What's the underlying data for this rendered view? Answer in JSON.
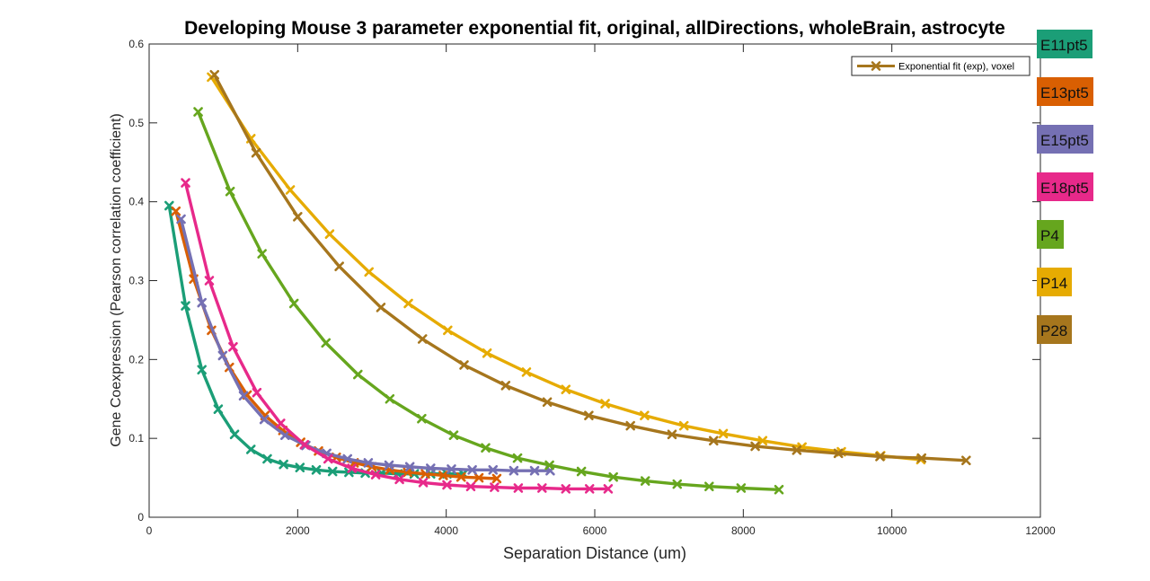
{
  "chart_data": {
    "type": "line",
    "title": "Developing Mouse 3 parameter exponential fit, original, allDirections, wholeBrain, astrocyte",
    "xlabel": "Separation Distance (um)",
    "ylabel": "Gene Coexpression (Pearson correlation coefficient)",
    "xlim": [
      0,
      12000
    ],
    "ylim": [
      0,
      0.6
    ],
    "xticks": [
      "0",
      "2000",
      "4000",
      "6000",
      "8000",
      "10000",
      "12000"
    ],
    "yticks": [
      "0",
      "0.1",
      "0.2",
      "0.3",
      "0.4",
      "0.5",
      "0.6"
    ],
    "grid": false,
    "legend": {
      "entry": "Exponential fit (exp), voxel",
      "position": "top-right",
      "color": "#a6761d"
    },
    "series": [
      {
        "name": "E11pt5",
        "color": "#1b9e77",
        "x": [
          270,
          490,
          710,
          930,
          1150,
          1370,
          1590,
          1810,
          2030,
          2250,
          2470,
          2690,
          2910,
          3130,
          3350,
          3570,
          3790,
          4010,
          4230
        ],
        "y": [
          0.395,
          0.268,
          0.187,
          0.137,
          0.105,
          0.086,
          0.074,
          0.067,
          0.063,
          0.06,
          0.058,
          0.057,
          0.056,
          0.056,
          0.055,
          0.055,
          0.055,
          0.055,
          0.055
        ]
      },
      {
        "name": "E13pt5",
        "color": "#d95f02",
        "x": [
          360,
          600,
          840,
          1080,
          1320,
          1560,
          1800,
          2040,
          2280,
          2520,
          2760,
          3000,
          3240,
          3480,
          3720,
          3960,
          4200,
          4440,
          4680
        ],
        "y": [
          0.388,
          0.302,
          0.237,
          0.19,
          0.155,
          0.129,
          0.11,
          0.095,
          0.084,
          0.076,
          0.069,
          0.064,
          0.06,
          0.057,
          0.055,
          0.053,
          0.051,
          0.05,
          0.049
        ]
      },
      {
        "name": "E15pt5",
        "color": "#7570b3",
        "x": [
          430,
          710,
          990,
          1270,
          1550,
          1830,
          2110,
          2390,
          2670,
          2950,
          3230,
          3510,
          3790,
          4070,
          4350,
          4630,
          4910,
          5190,
          5400
        ],
        "y": [
          0.378,
          0.272,
          0.205,
          0.154,
          0.124,
          0.104,
          0.091,
          0.081,
          0.074,
          0.069,
          0.066,
          0.064,
          0.062,
          0.061,
          0.06,
          0.06,
          0.059,
          0.059,
          0.059
        ]
      },
      {
        "name": "E18pt5",
        "color": "#e7298a",
        "x": [
          490,
          810,
          1130,
          1450,
          1770,
          2090,
          2410,
          2730,
          3050,
          3370,
          3690,
          4010,
          4330,
          4650,
          4970,
          5290,
          5610,
          5930,
          6180
        ],
        "y": [
          0.424,
          0.3,
          0.216,
          0.158,
          0.119,
          0.092,
          0.074,
          0.062,
          0.054,
          0.048,
          0.044,
          0.041,
          0.039,
          0.038,
          0.037,
          0.037,
          0.036,
          0.036,
          0.036
        ]
      },
      {
        "name": "P4",
        "color": "#66a61e",
        "x": [
          660,
          1090,
          1520,
          1950,
          2380,
          2810,
          3240,
          3670,
          4100,
          4530,
          4960,
          5390,
          5820,
          6250,
          6680,
          7110,
          7540,
          7970,
          8480
        ],
        "y": [
          0.514,
          0.413,
          0.334,
          0.271,
          0.221,
          0.181,
          0.15,
          0.125,
          0.104,
          0.088,
          0.075,
          0.066,
          0.058,
          0.051,
          0.046,
          0.042,
          0.039,
          0.037,
          0.035
        ]
      },
      {
        "name": "P14",
        "color": "#e6ab02",
        "x": [
          840,
          1370,
          1900,
          2430,
          2960,
          3490,
          4020,
          4550,
          5080,
          5610,
          6140,
          6670,
          7200,
          7730,
          8260,
          8790,
          9320,
          9850,
          10390
        ],
        "y": [
          0.558,
          0.48,
          0.415,
          0.359,
          0.311,
          0.271,
          0.237,
          0.208,
          0.184,
          0.162,
          0.144,
          0.129,
          0.116,
          0.106,
          0.097,
          0.089,
          0.083,
          0.078,
          0.073
        ]
      },
      {
        "name": "P28",
        "color": "#a6761d",
        "x": [
          880,
          1440,
          2000,
          2560,
          3120,
          3680,
          4240,
          4800,
          5360,
          5920,
          6480,
          7040,
          7600,
          8160,
          8720,
          9280,
          9840,
          10400,
          11000
        ],
        "y": [
          0.561,
          0.462,
          0.381,
          0.318,
          0.266,
          0.226,
          0.193,
          0.167,
          0.146,
          0.129,
          0.116,
          0.105,
          0.097,
          0.09,
          0.085,
          0.081,
          0.077,
          0.075,
          0.072
        ]
      }
    ]
  },
  "series_tags": [
    "E11pt5",
    "E13pt5",
    "E15pt5",
    "E18pt5",
    "P4",
    "P14",
    "P28"
  ]
}
